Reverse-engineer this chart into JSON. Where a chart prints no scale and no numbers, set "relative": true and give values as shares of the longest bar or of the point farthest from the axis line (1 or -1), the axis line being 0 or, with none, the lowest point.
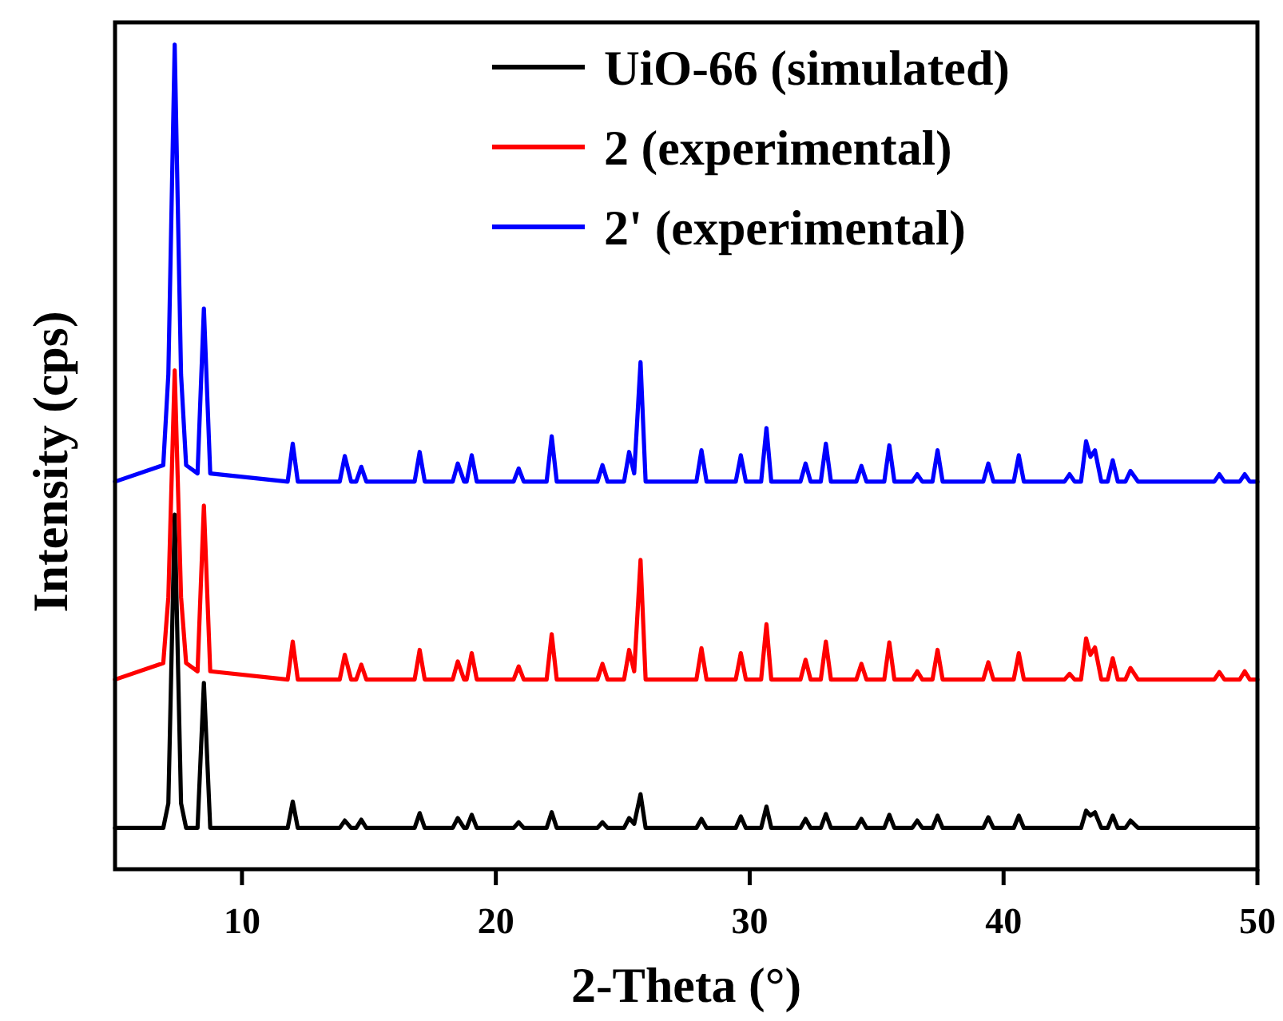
{
  "chart_data": {
    "type": "line",
    "xlabel": "2-Theta (°)",
    "ylabel": "Intensity (cps)",
    "relative": true,
    "xlim": [
      5,
      50
    ],
    "xticks": [
      10,
      20,
      30,
      40,
      50
    ],
    "legend": "top right",
    "x": [
      5,
      6.9,
      7.1,
      7.35,
      7.6,
      7.8,
      8.25,
      8.5,
      8.75,
      11.8,
      12.0,
      12.2,
      13.85,
      14.05,
      14.3,
      14.5,
      14.7,
      14.9,
      16.8,
      17.0,
      17.2,
      18.3,
      18.5,
      18.75,
      18.85,
      19.05,
      19.25,
      20.7,
      20.9,
      21.1,
      22.0,
      22.2,
      22.4,
      24.0,
      24.2,
      24.4,
      25.05,
      25.25,
      25.45,
      25.7,
      25.9,
      27.9,
      28.1,
      28.3,
      29.45,
      29.65,
      29.85,
      30.45,
      30.66,
      30.85,
      32.0,
      32.2,
      32.4,
      32.8,
      33.0,
      33.2,
      34.2,
      34.4,
      34.6,
      35.3,
      35.5,
      35.7,
      36.4,
      36.6,
      36.8,
      37.2,
      37.4,
      37.6,
      39.2,
      39.4,
      39.6,
      40.4,
      40.6,
      40.8,
      42.4,
      42.6,
      42.8,
      43.05,
      43.25,
      43.42,
      43.6,
      43.85,
      44.1,
      44.3,
      44.5,
      44.8,
      45.0,
      45.3,
      48.3,
      48.5,
      48.7,
      49.3,
      49.5,
      49.7,
      50
    ],
    "series": [
      {
        "name": "UiO-66 (simulated)",
        "color": "#000000",
        "values": [
          0.05,
          0.05,
          0.08,
          0.43,
          0.08,
          0.05,
          0.05,
          0.226,
          0.05,
          0.05,
          0.082,
          0.05,
          0.05,
          0.059,
          0.05,
          0.05,
          0.06,
          0.05,
          0.05,
          0.068,
          0.05,
          0.05,
          0.062,
          0.05,
          0.05,
          0.066,
          0.05,
          0.05,
          0.057,
          0.05,
          0.05,
          0.069,
          0.05,
          0.05,
          0.057,
          0.05,
          0.05,
          0.062,
          0.055,
          0.091,
          0.05,
          0.05,
          0.061,
          0.05,
          0.05,
          0.064,
          0.05,
          0.05,
          0.076,
          0.05,
          0.05,
          0.061,
          0.05,
          0.05,
          0.067,
          0.05,
          0.05,
          0.061,
          0.05,
          0.05,
          0.066,
          0.05,
          0.05,
          0.059,
          0.05,
          0.05,
          0.065,
          0.05,
          0.05,
          0.063,
          0.05,
          0.05,
          0.065,
          0.05,
          0.05,
          0.05,
          0.05,
          0.05,
          0.071,
          0.065,
          0.069,
          0.05,
          0.05,
          0.065,
          0.05,
          0.05,
          0.059,
          0.05,
          0.05,
          0.05,
          0.05,
          0.05,
          0.05,
          0.05,
          0.05
        ]
      },
      {
        "name": "2 (experimental)",
        "color": "#ff0000",
        "values": [
          0.23,
          0.25,
          0.33,
          0.605,
          0.33,
          0.25,
          0.24,
          0.441,
          0.24,
          0.23,
          0.276,
          0.23,
          0.23,
          0.26,
          0.23,
          0.23,
          0.248,
          0.23,
          0.23,
          0.266,
          0.23,
          0.23,
          0.252,
          0.23,
          0.23,
          0.262,
          0.23,
          0.23,
          0.246,
          0.23,
          0.23,
          0.285,
          0.23,
          0.23,
          0.249,
          0.23,
          0.23,
          0.266,
          0.24,
          0.375,
          0.23,
          0.23,
          0.268,
          0.23,
          0.23,
          0.262,
          0.23,
          0.23,
          0.297,
          0.23,
          0.23,
          0.254,
          0.23,
          0.23,
          0.276,
          0.23,
          0.23,
          0.249,
          0.23,
          0.23,
          0.275,
          0.23,
          0.23,
          0.24,
          0.23,
          0.23,
          0.266,
          0.23,
          0.23,
          0.251,
          0.23,
          0.23,
          0.262,
          0.23,
          0.23,
          0.237,
          0.23,
          0.23,
          0.28,
          0.26,
          0.269,
          0.23,
          0.23,
          0.256,
          0.23,
          0.23,
          0.244,
          0.23,
          0.23,
          0.239,
          0.23,
          0.23,
          0.24,
          0.23,
          0.23
        ]
      },
      {
        "name": "2' (experimental)",
        "color": "#0000ff",
        "values": [
          0.47,
          0.49,
          0.6,
          1.0,
          0.6,
          0.49,
          0.48,
          0.68,
          0.48,
          0.47,
          0.516,
          0.47,
          0.47,
          0.501,
          0.47,
          0.47,
          0.488,
          0.47,
          0.47,
          0.506,
          0.47,
          0.47,
          0.492,
          0.47,
          0.47,
          0.502,
          0.47,
          0.47,
          0.486,
          0.47,
          0.47,
          0.525,
          0.47,
          0.47,
          0.49,
          0.47,
          0.47,
          0.506,
          0.48,
          0.615,
          0.47,
          0.47,
          0.508,
          0.47,
          0.47,
          0.502,
          0.47,
          0.47,
          0.535,
          0.47,
          0.47,
          0.492,
          0.47,
          0.47,
          0.516,
          0.47,
          0.47,
          0.489,
          0.47,
          0.47,
          0.514,
          0.47,
          0.47,
          0.479,
          0.47,
          0.47,
          0.508,
          0.47,
          0.47,
          0.492,
          0.47,
          0.47,
          0.502,
          0.47,
          0.47,
          0.479,
          0.47,
          0.47,
          0.519,
          0.5,
          0.508,
          0.47,
          0.47,
          0.496,
          0.47,
          0.47,
          0.483,
          0.47,
          0.47,
          0.479,
          0.47,
          0.47,
          0.479,
          0.47,
          0.47
        ]
      }
    ]
  }
}
